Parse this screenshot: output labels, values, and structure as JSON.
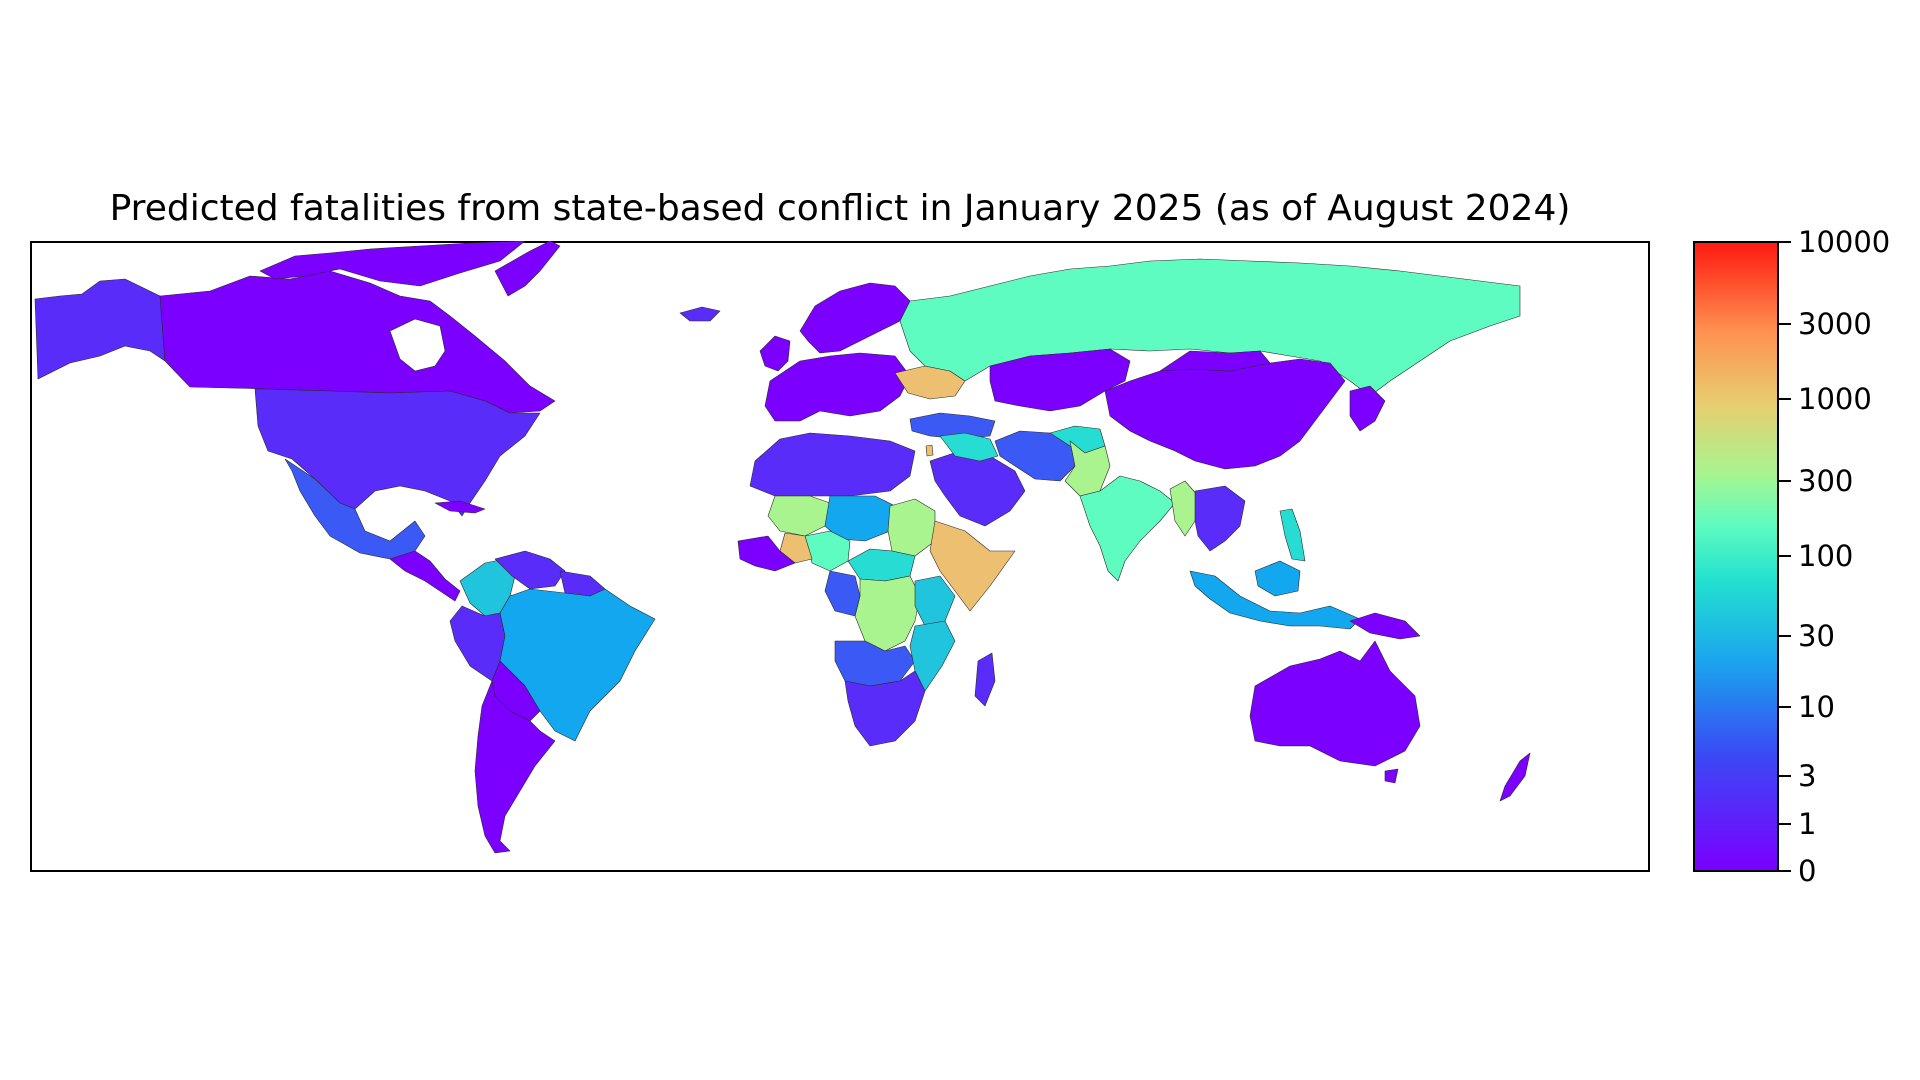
{
  "title": "Predicted fatalities from state-based conflict in January 2025 (as of August 2024)",
  "colorbar": {
    "scale": "log",
    "colormap": "rainbow",
    "ticks": [
      {
        "value": 0,
        "label": "0",
        "color": "#7b00ff"
      },
      {
        "value": 1,
        "label": "1",
        "color": "#5a2cfa"
      },
      {
        "value": 3,
        "label": "3",
        "color": "#3b5af5"
      },
      {
        "value": 10,
        "label": "10",
        "color": "#12a7ee"
      },
      {
        "value": 30,
        "label": "30",
        "color": "#27dcd2"
      },
      {
        "value": 100,
        "label": "100",
        "color": "#5efcc0"
      },
      {
        "value": 300,
        "label": "300",
        "color": "#a9f48f"
      },
      {
        "value": 1000,
        "label": "1000",
        "color": "#ffa858"
      },
      {
        "value": 3000,
        "label": "3000",
        "color": "#ff6a3c"
      },
      {
        "value": 10000,
        "label": "10000",
        "color": "#ff1a10"
      }
    ]
  },
  "palette": {
    "level_0": "#7b00ff",
    "level_1": "#5a2cfa",
    "level_3": "#3b5af5",
    "level_10": "#12a7ee",
    "level_20": "#20c4dc",
    "level_30": "#27dcd2",
    "level_100": "#5efcc0",
    "level_200": "#a9f48f",
    "level_500": "#d6d878",
    "level_1000": "#ecc070"
  },
  "chart_data": {
    "type": "choropleth",
    "projection": "equirectangular",
    "color_scale": "log",
    "value_range": [
      0,
      10000
    ],
    "regions": [
      {
        "name": "Russia",
        "value": 100
      },
      {
        "name": "Ukraine",
        "value": 1000
      },
      {
        "name": "Sudan",
        "value": 300
      },
      {
        "name": "Ethiopia",
        "value": 1000
      },
      {
        "name": "Somalia",
        "value": 1000
      },
      {
        "name": "Nigeria",
        "value": 100
      },
      {
        "name": "Mali",
        "value": 200
      },
      {
        "name": "Burkina Faso",
        "value": 1000
      },
      {
        "name": "DR Congo",
        "value": 300
      },
      {
        "name": "Myanmar",
        "value": 300
      },
      {
        "name": "Pakistan",
        "value": 300
      },
      {
        "name": "India",
        "value": 100
      },
      {
        "name": "Afghanistan",
        "value": 30
      },
      {
        "name": "Brazil",
        "value": 10
      },
      {
        "name": "Colombia",
        "value": 20
      },
      {
        "name": "Mexico",
        "value": 3
      },
      {
        "name": "Philippines",
        "value": 30
      },
      {
        "name": "Israel",
        "value": 3000
      },
      {
        "name": "Syria",
        "value": 30
      },
      {
        "name": "Iran",
        "value": 3
      },
      {
        "name": "United States",
        "value": 1
      },
      {
        "name": "Canada",
        "value": 0
      },
      {
        "name": "China",
        "value": 0
      },
      {
        "name": "Australia",
        "value": 0
      }
    ]
  }
}
